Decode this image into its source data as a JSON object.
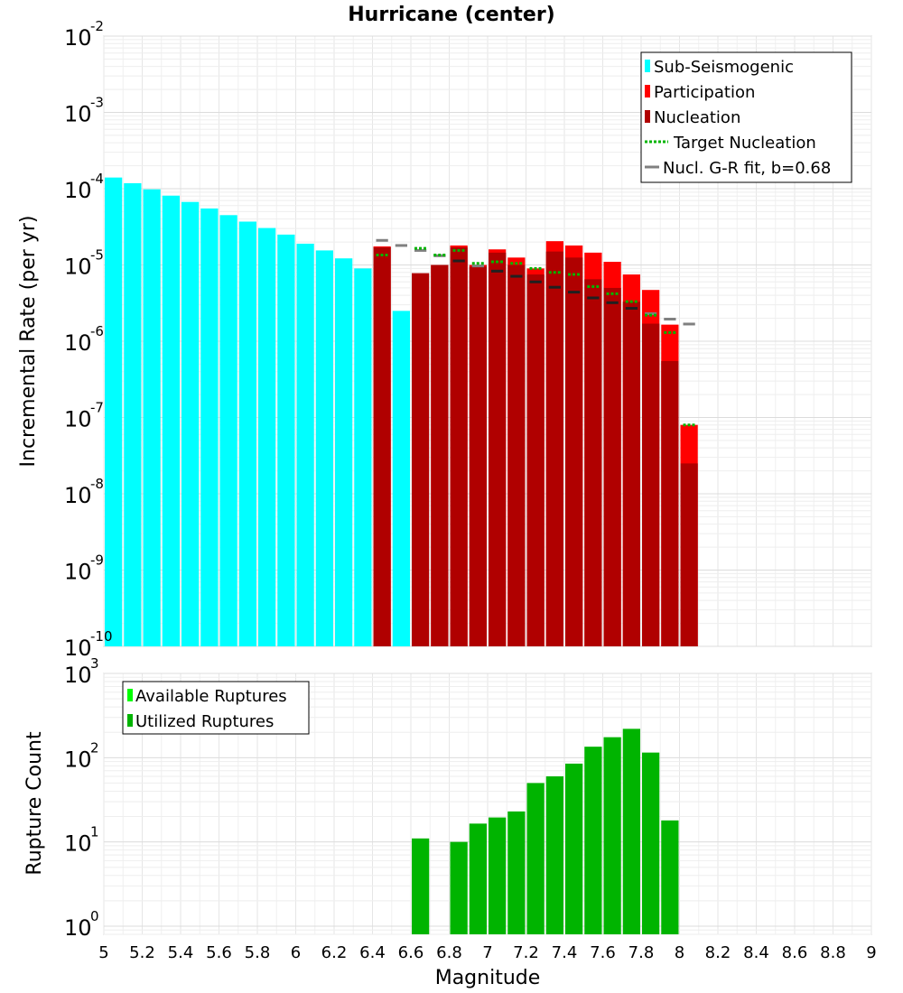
{
  "chart_data": [
    {
      "type": "bar",
      "title": "Hurricane (center)",
      "xlabel": "",
      "ylabel": "Incremental Rate (per yr)",
      "y_scale": "log",
      "ylim": [
        1e-10,
        0.01
      ],
      "xlim": [
        5,
        9
      ],
      "bin_width": 0.1,
      "legend": {
        "placement": "top-right",
        "entries": [
          {
            "label": "Sub-Seismogenic",
            "color": "#00ffff"
          },
          {
            "label": "Participation",
            "color": "#ff0000"
          },
          {
            "label": "Nucleation",
            "color": "#b00000"
          },
          {
            "label": "Target Nucleation",
            "color": "#00b400"
          },
          {
            "label": "Nucl. G-R fit, b=0.68",
            "color": "#808080"
          }
        ]
      },
      "series": [
        {
          "name": "Sub-Seismogenic",
          "color": "#00ffff",
          "points": [
            {
              "x": 5.05,
              "y": 0.00014
            },
            {
              "x": 5.15,
              "y": 0.000118
            },
            {
              "x": 5.25,
              "y": 9.8e-05
            },
            {
              "x": 5.35,
              "y": 8.1e-05
            },
            {
              "x": 5.45,
              "y": 6.7e-05
            },
            {
              "x": 5.55,
              "y": 5.5e-05
            },
            {
              "x": 5.65,
              "y": 4.5e-05
            },
            {
              "x": 5.75,
              "y": 3.7e-05
            },
            {
              "x": 5.85,
              "y": 3.05e-05
            },
            {
              "x": 5.95,
              "y": 2.5e-05
            },
            {
              "x": 6.05,
              "y": 1.9e-05
            },
            {
              "x": 6.15,
              "y": 1.55e-05
            },
            {
              "x": 6.25,
              "y": 1.22e-05
            },
            {
              "x": 6.35,
              "y": 9e-06
            },
            {
              "x": 6.55,
              "y": 2.5e-06
            }
          ]
        },
        {
          "name": "Participation",
          "color": "#ff0000",
          "points": [
            {
              "x": 6.45,
              "y": 1.75e-05
            },
            {
              "x": 6.75,
              "y": 1e-05
            },
            {
              "x": 6.85,
              "y": 1.8e-05
            },
            {
              "x": 6.95,
              "y": 1e-05
            },
            {
              "x": 7.05,
              "y": 1.6e-05
            },
            {
              "x": 7.15,
              "y": 1.25e-05
            },
            {
              "x": 7.25,
              "y": 9e-06
            },
            {
              "x": 7.35,
              "y": 2.05e-05
            },
            {
              "x": 7.45,
              "y": 1.8e-05
            },
            {
              "x": 7.55,
              "y": 1.45e-05
            },
            {
              "x": 7.65,
              "y": 1.1e-05
            },
            {
              "x": 7.75,
              "y": 7.5e-06
            },
            {
              "x": 7.85,
              "y": 4.7e-06
            },
            {
              "x": 7.95,
              "y": 1.65e-06
            },
            {
              "x": 8.05,
              "y": 8e-08
            }
          ]
        },
        {
          "name": "Nucleation",
          "color": "#b00000",
          "points": [
            {
              "x": 6.45,
              "y": 1.7e-05
            },
            {
              "x": 6.65,
              "y": 7.8e-06
            },
            {
              "x": 6.75,
              "y": 1e-05
            },
            {
              "x": 6.85,
              "y": 1.7e-05
            },
            {
              "x": 6.95,
              "y": 9.5e-06
            },
            {
              "x": 7.05,
              "y": 1.45e-05
            },
            {
              "x": 7.15,
              "y": 1e-05
            },
            {
              "x": 7.25,
              "y": 7.5e-06
            },
            {
              "x": 7.35,
              "y": 1.5e-05
            },
            {
              "x": 7.45,
              "y": 1.25e-05
            },
            {
              "x": 7.55,
              "y": 6.5e-06
            },
            {
              "x": 7.65,
              "y": 5e-06
            },
            {
              "x": 7.75,
              "y": 3.3e-06
            },
            {
              "x": 7.85,
              "y": 1.7e-06
            },
            {
              "x": 7.95,
              "y": 5.5e-07
            },
            {
              "x": 8.05,
              "y": 2.5e-08
            }
          ]
        },
        {
          "name": "Target Nucleation",
          "color": "#00b400",
          "style": "dotted",
          "points": [
            {
              "x": 6.45,
              "y": 1.35e-05
            },
            {
              "x": 6.65,
              "y": 1.65e-05
            },
            {
              "x": 6.75,
              "y": 1.35e-05
            },
            {
              "x": 6.85,
              "y": 1.55e-05
            },
            {
              "x": 6.95,
              "y": 1.05e-05
            },
            {
              "x": 7.05,
              "y": 1.1e-05
            },
            {
              "x": 7.15,
              "y": 1.05e-05
            },
            {
              "x": 7.25,
              "y": 9e-06
            },
            {
              "x": 7.35,
              "y": 8e-06
            },
            {
              "x": 7.45,
              "y": 7.5e-06
            },
            {
              "x": 7.55,
              "y": 5.2e-06
            },
            {
              "x": 7.65,
              "y": 4.2e-06
            },
            {
              "x": 7.75,
              "y": 3.3e-06
            },
            {
              "x": 7.85,
              "y": 2.2e-06
            },
            {
              "x": 7.95,
              "y": 1.3e-06
            },
            {
              "x": 8.05,
              "y": 8e-08
            }
          ]
        },
        {
          "name": "Nucl. G-R fit, b=0.68",
          "color": "#808080",
          "style": "line",
          "points": [
            {
              "x": 6.45,
              "y": 2.1e-05
            },
            {
              "x": 6.55,
              "y": 1.8e-05
            },
            {
              "x": 6.65,
              "y": 1.55e-05
            },
            {
              "x": 6.75,
              "y": 1.32e-05
            },
            {
              "x": 6.85,
              "y": 1.13e-05
            },
            {
              "x": 6.95,
              "y": 9.7e-06
            },
            {
              "x": 7.05,
              "y": 8.3e-06
            },
            {
              "x": 7.15,
              "y": 7.1e-06
            },
            {
              "x": 7.25,
              "y": 6e-06
            },
            {
              "x": 7.35,
              "y": 5.1e-06
            },
            {
              "x": 7.45,
              "y": 4.4e-06
            },
            {
              "x": 7.55,
              "y": 3.7e-06
            },
            {
              "x": 7.65,
              "y": 3.2e-06
            },
            {
              "x": 7.75,
              "y": 2.7e-06
            },
            {
              "x": 7.85,
              "y": 2.3e-06
            },
            {
              "x": 7.95,
              "y": 1.95e-06
            },
            {
              "x": 8.05,
              "y": 1.68e-06
            }
          ]
        }
      ]
    },
    {
      "type": "bar",
      "title": "",
      "xlabel": "Magnitude",
      "ylabel": "Rupture Count",
      "y_scale": "log",
      "ylim": [
        0.8,
        1000
      ],
      "xlim": [
        5,
        9
      ],
      "bin_width": 0.1,
      "x_ticks": [
        "5",
        "5.2",
        "5.4",
        "5.6",
        "5.8",
        "6",
        "6.2",
        "6.4",
        "6.6",
        "6.8",
        "7",
        "7.2",
        "7.4",
        "7.6",
        "7.8",
        "8",
        "8.2",
        "8.4",
        "8.6",
        "8.8",
        "9"
      ],
      "legend": {
        "placement": "top-left",
        "entries": [
          {
            "label": "Available Ruptures",
            "color": "#00ff00"
          },
          {
            "label": "Utilized Ruptures",
            "color": "#00b400"
          }
        ]
      },
      "series": [
        {
          "name": "Utilized Ruptures",
          "color": "#00b400",
          "points": [
            {
              "x": 6.65,
              "y": 11
            },
            {
              "x": 6.85,
              "y": 10
            },
            {
              "x": 6.95,
              "y": 16.5
            },
            {
              "x": 7.05,
              "y": 19.5
            },
            {
              "x": 7.15,
              "y": 23
            },
            {
              "x": 7.25,
              "y": 50
            },
            {
              "x": 7.35,
              "y": 60
            },
            {
              "x": 7.45,
              "y": 85
            },
            {
              "x": 7.55,
              "y": 135
            },
            {
              "x": 7.65,
              "y": 175
            },
            {
              "x": 7.75,
              "y": 220
            },
            {
              "x": 7.85,
              "y": 115
            },
            {
              "x": 7.95,
              "y": 18
            }
          ]
        }
      ]
    }
  ]
}
